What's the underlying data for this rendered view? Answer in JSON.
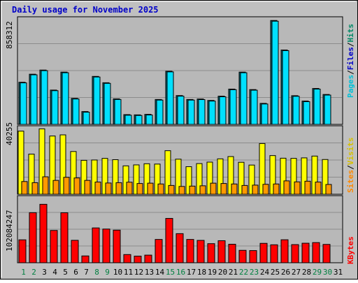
{
  "colors": {
    "background": "#c0c0c0",
    "plot_bg": "#b8b8b8",
    "grid": "#8c8c8c",
    "title": "#0000c8",
    "pages": "#00e0ff",
    "hits": "#00e0ff",
    "hits_dark": "#006c7a",
    "files": "#00e0ff",
    "visits": "#ffff00",
    "sites": "#ff9900",
    "kbytes": "#ff0000",
    "label_pages": "#00c0d8",
    "label_files": "#0000c8",
    "label_hits": "#008866",
    "label_sites": "#ff8800",
    "label_visits": "#d8c000",
    "label_kbytes": "#ff0000",
    "day_weekend": "#008040",
    "day_normal": "#000000"
  },
  "chart_data": [
    {
      "type": "bar",
      "title": "Daily usage for November 2025",
      "panel": "hits-files-pages",
      "categories": [
        "1",
        "2",
        "3",
        "4",
        "5",
        "6",
        "7",
        "8",
        "9",
        "10",
        "11",
        "12",
        "13",
        "14",
        "15",
        "16",
        "17",
        "18",
        "19",
        "20",
        "21",
        "22",
        "23",
        "24",
        "25",
        "26",
        "27",
        "28",
        "29",
        "30",
        "31"
      ],
      "max_label": "858312",
      "ylim": [
        0,
        858312
      ],
      "legend": [
        "Pages",
        "Files",
        "Hits"
      ],
      "legend_placement": "right",
      "series": [
        {
          "name": "Hits",
          "values": [
            345000,
            411000,
            445000,
            281000,
            428000,
            213000,
            105000,
            393000,
            341000,
            209000,
            80000,
            78000,
            82000,
            204000,
            435000,
            236000,
            204000,
            208000,
            196000,
            231000,
            289000,
            428000,
            285000,
            172000,
            851000,
            609000,
            235000,
            191000,
            294000,
            245000,
            0
          ]
        },
        {
          "name": "Files",
          "values": [
            340000,
            406000,
            440000,
            276000,
            423000,
            208000,
            100000,
            388000,
            336000,
            204000,
            75000,
            73000,
            77000,
            199000,
            430000,
            231000,
            199000,
            203000,
            191000,
            226000,
            284000,
            423000,
            280000,
            167000,
            845000,
            604000,
            230000,
            186000,
            289000,
            240000,
            0
          ]
        }
      ]
    },
    {
      "type": "bar",
      "panel": "visits-sites",
      "categories": [
        "1",
        "2",
        "3",
        "4",
        "5",
        "6",
        "7",
        "8",
        "9",
        "10",
        "11",
        "12",
        "13",
        "14",
        "15",
        "16",
        "17",
        "18",
        "19",
        "20",
        "21",
        "22",
        "23",
        "24",
        "25",
        "26",
        "27",
        "28",
        "29",
        "30",
        "31"
      ],
      "max_label": "40255",
      "ylim": [
        0,
        40255
      ],
      "legend": [
        "Sites",
        "Visits"
      ],
      "legend_placement": "right",
      "series": [
        {
          "name": "Visits",
          "values": [
            38700,
            24600,
            40100,
            35700,
            36400,
            26200,
            20800,
            21000,
            22000,
            21200,
            17400,
            18000,
            18700,
            18500,
            26700,
            21500,
            16900,
            18800,
            19700,
            21700,
            23100,
            19600,
            17900,
            31100,
            23700,
            22100,
            22000,
            22300,
            23400,
            21300,
            0
          ]
        },
        {
          "name": "Sites",
          "values": [
            7800,
            7100,
            10700,
            8500,
            10400,
            10000,
            8500,
            7500,
            6900,
            7100,
            7400,
            6600,
            6800,
            6300,
            5400,
            4800,
            5000,
            5200,
            6800,
            6600,
            6300,
            5400,
            5600,
            6100,
            6300,
            8200,
            7600,
            8000,
            7500,
            6000,
            0
          ]
        }
      ]
    },
    {
      "type": "bar",
      "panel": "kbytes",
      "categories": [
        "1",
        "2",
        "3",
        "4",
        "5",
        "6",
        "7",
        "8",
        "9",
        "10",
        "11",
        "12",
        "13",
        "14",
        "15",
        "16",
        "17",
        "18",
        "19",
        "20",
        "21",
        "22",
        "23",
        "24",
        "25",
        "26",
        "27",
        "28",
        "29",
        "30",
        "31"
      ],
      "max_label": "102084247",
      "ylim": [
        0,
        102084247
      ],
      "legend": [
        "KBytes"
      ],
      "legend_placement": "right",
      "series": [
        {
          "name": "KBytes",
          "values": [
            36400000,
            79500000,
            92800000,
            51300000,
            79400000,
            35600000,
            10800000,
            55300000,
            53500000,
            51800000,
            13000000,
            10500000,
            12100000,
            37000000,
            70400000,
            46200000,
            37000000,
            35500000,
            30300000,
            35000000,
            29400000,
            19700000,
            19300000,
            30800000,
            28500000,
            36500000,
            28800000,
            31000000,
            32000000,
            29100000,
            0
          ]
        }
      ]
    }
  ],
  "weekend_days": [
    1,
    2,
    8,
    9,
    15,
    16,
    22,
    23,
    29,
    30
  ]
}
